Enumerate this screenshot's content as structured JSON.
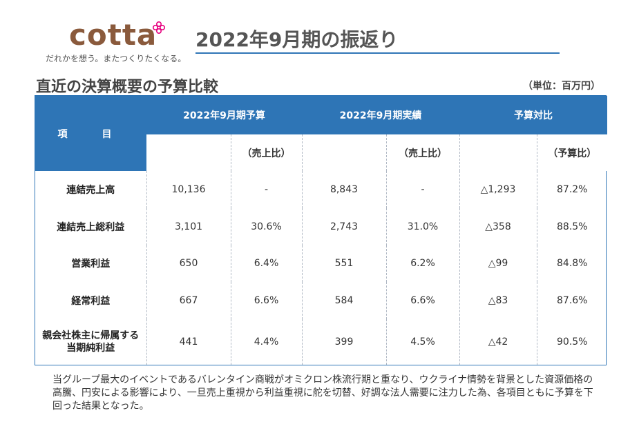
{
  "brand": {
    "logo_text": "cotta",
    "tagline": "だれかを想う。またつくりたくなる。",
    "accent_color": "#e6007e",
    "logo_color": "#8a5a3c"
  },
  "page_title": "2022年9月期の振返り",
  "section_title": "直近の決算概要の予算比較",
  "unit": "（単位：百万円）",
  "table": {
    "header_item": "項　目",
    "groups": [
      "2022年9月期予算",
      "2022年9月期実績",
      "予算対比"
    ],
    "sub_headers": [
      "（売上比）",
      "（売上比）",
      "（予算比）"
    ],
    "rows": [
      {
        "label": "連結売上高",
        "budget": "10,136",
        "budget_ratio": "-",
        "actual": "8,843",
        "actual_ratio": "-",
        "diff": "△1,293",
        "diff_ratio": "87.2%"
      },
      {
        "label": "連結売上総利益",
        "budget": "3,101",
        "budget_ratio": "30.6%",
        "actual": "2,743",
        "actual_ratio": "31.0%",
        "diff": "△358",
        "diff_ratio": "88.5%"
      },
      {
        "label": "営業利益",
        "budget": "650",
        "budget_ratio": "6.4%",
        "actual": "551",
        "actual_ratio": "6.2%",
        "diff": "△99",
        "diff_ratio": "84.8%"
      },
      {
        "label": "経常利益",
        "budget": "667",
        "budget_ratio": "6.6%",
        "actual": "584",
        "actual_ratio": "6.6%",
        "diff": "△83",
        "diff_ratio": "87.6%"
      },
      {
        "label_line1": "親会社株主に帰属する",
        "label_line2": "当期純利益",
        "budget": "441",
        "budget_ratio": "4.4%",
        "actual": "399",
        "actual_ratio": "4.5%",
        "diff": "△42",
        "diff_ratio": "90.5%"
      }
    ],
    "header_color": "#2e75b6"
  },
  "note": "当グループ最大のイベントであるバレンタイン商戦がオミクロン株流行期と重なり、ウクライナ情勢を背景とした資源価格の高騰、円安による影響により、一旦売上重視から利益重視に舵を切替、好調な法人需要に注力した為、各項目ともに予算を下回った結果となった。"
}
